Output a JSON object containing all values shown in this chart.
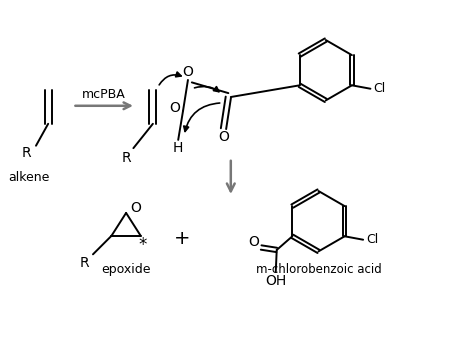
{
  "background_color": "#ffffff",
  "line_color": "#000000",
  "text_color": "#000000",
  "arrow_color": "#777777",
  "curved_arrow_color": "#222222",
  "figsize": [
    4.59,
    3.45
  ],
  "dpi": 100,
  "xlim": [
    0,
    9.2
  ],
  "ylim": [
    0,
    6.9
  ]
}
